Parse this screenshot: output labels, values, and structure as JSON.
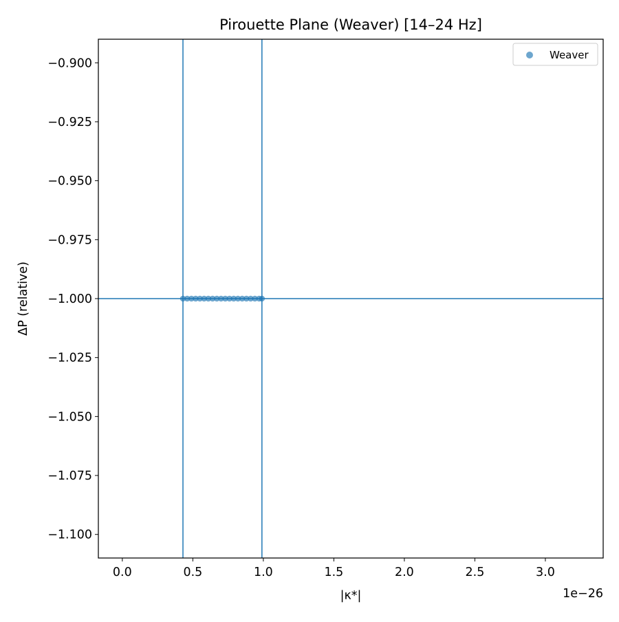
{
  "chart_data": {
    "type": "scatter",
    "title": "Pirouette Plane (Weaver)  [14–24 Hz]",
    "xlabel": "|κ*|",
    "ylabel": "ΔP (relative)",
    "x_offset_text": "1e−26",
    "x_scale_exponent": -26,
    "xlim": [
      -0.17,
      3.41
    ],
    "ylim": [
      -1.11,
      -0.89
    ],
    "xticks": [
      0.0,
      0.5,
      1.0,
      1.5,
      2.0,
      2.5,
      3.0
    ],
    "xtick_labels": [
      "0.0",
      "0.5",
      "1.0",
      "1.5",
      "2.0",
      "2.5",
      "3.0"
    ],
    "yticks": [
      -0.9,
      -0.925,
      -0.95,
      -0.975,
      -1.0,
      -1.025,
      -1.05,
      -1.075,
      -1.1
    ],
    "ytick_labels": [
      "−0.900",
      "−0.925",
      "−0.950",
      "−0.975",
      "−1.000",
      "−1.025",
      "−1.050",
      "−1.075",
      "−1.100"
    ],
    "grid": false,
    "legend_position": "top-right",
    "series": [
      {
        "name": "Weaver",
        "color": "#1f77b4",
        "x": [
          0.43,
          0.46,
          0.49,
          0.52,
          0.55,
          0.58,
          0.61,
          0.64,
          0.67,
          0.7,
          0.73,
          0.76,
          0.79,
          0.82,
          0.85,
          0.88,
          0.91,
          0.94,
          0.97,
          0.99
        ],
        "y": [
          -1.0,
          -1.0,
          -1.0,
          -1.0,
          -1.0,
          -1.0,
          -1.0,
          -1.0,
          -1.0,
          -1.0,
          -1.0,
          -1.0,
          -1.0,
          -1.0,
          -1.0,
          -1.0,
          -1.0,
          -1.0,
          -1.0,
          -1.0
        ]
      }
    ],
    "reference_lines": {
      "vertical_x": [
        0.43,
        0.99
      ],
      "horizontal_y": [
        -1.0
      ],
      "color": "#1f77b4"
    }
  }
}
